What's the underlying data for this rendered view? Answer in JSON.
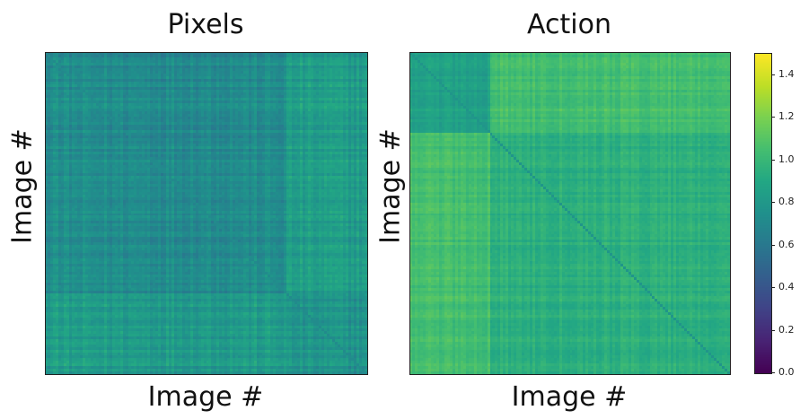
{
  "chart_data": [
    {
      "type": "heatmap",
      "title": "Pixels",
      "xlabel": "Image #",
      "ylabel": "Image #",
      "size": 120,
      "block_boundary": 0.75,
      "block_within_value": 0.72,
      "block_between_value": 0.82,
      "diagonal_value": 0.72,
      "noise": 0.06,
      "colormap": "viridis",
      "clim": [
        0.0,
        1.5
      ]
    },
    {
      "type": "heatmap",
      "title": "Action",
      "xlabel": "Image #",
      "ylabel": "Image #",
      "size": 120,
      "block_boundary": 0.25,
      "block_within_value": 0.86,
      "block_between_value": 1.05,
      "diagonal_value": 0.78,
      "noise": 0.04,
      "colormap": "viridis",
      "clim": [
        0.0,
        1.5
      ]
    }
  ],
  "colorbar": {
    "ticks": [
      "0.0",
      "0.2",
      "0.4",
      "0.6",
      "0.8",
      "1.0",
      "1.2",
      "1.4"
    ],
    "tick_values": [
      0.0,
      0.2,
      0.4,
      0.6,
      0.8,
      1.0,
      1.2,
      1.4
    ],
    "range": [
      0.0,
      1.5
    ]
  }
}
